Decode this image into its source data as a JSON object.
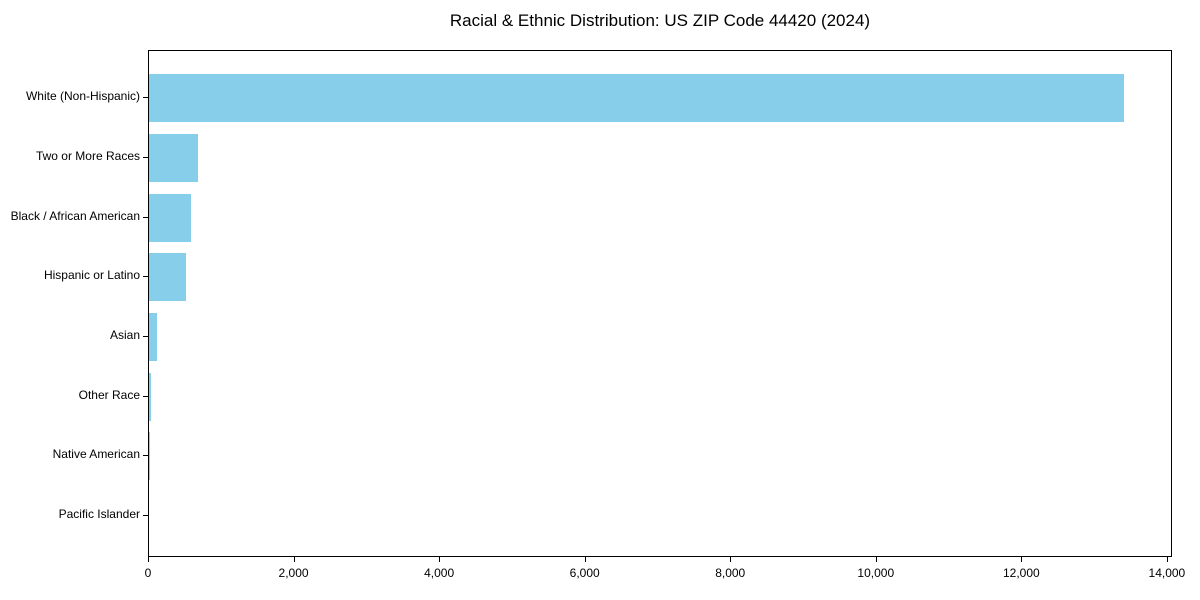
{
  "chart_data": {
    "type": "bar",
    "orientation": "horizontal",
    "title": "Racial & Ethnic Distribution: US ZIP Code 44420 (2024)",
    "categories": [
      "White (Non-Hispanic)",
      "Two or More Races",
      "Black / African American",
      "Hispanic or Latino",
      "Asian",
      "Other Race",
      "Native American",
      "Pacific Islander"
    ],
    "values": [
      13400,
      675,
      575,
      510,
      110,
      25,
      10,
      0
    ],
    "xlabel": "",
    "ylabel": "",
    "xlim": [
      0,
      14070
    ],
    "xticks": [
      0,
      2000,
      4000,
      6000,
      8000,
      10000,
      12000,
      14000
    ],
    "xtick_labels": [
      "0",
      "2,000",
      "4,000",
      "6,000",
      "8,000",
      "10,000",
      "12,000",
      "14,000"
    ],
    "bar_color": "#87CEEB",
    "axis_color": "#000000",
    "grid": false,
    "legend": null
  }
}
